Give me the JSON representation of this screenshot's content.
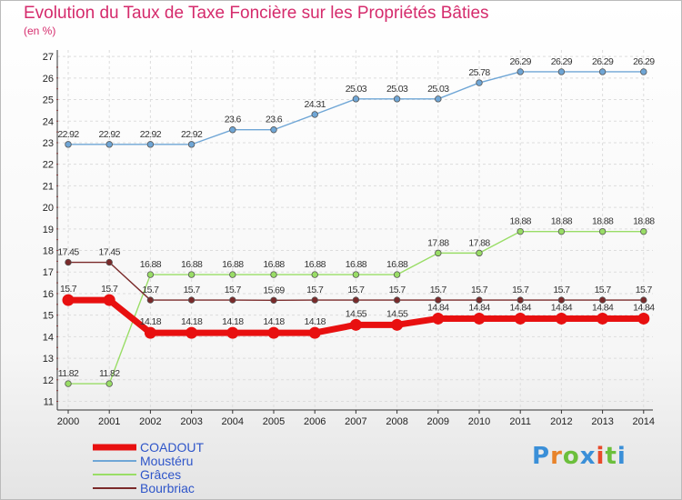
{
  "title": "Evolution du Taux de Taxe Foncière sur les Propriétés Bâties",
  "unit": "(en %)",
  "logo": "Proxiti",
  "chart_data": {
    "type": "line",
    "x": [
      2000,
      2001,
      2002,
      2003,
      2004,
      2005,
      2006,
      2007,
      2008,
      2009,
      2010,
      2011,
      2012,
      2013,
      2014
    ],
    "ylim": [
      10.6,
      27.3
    ],
    "yticks": [
      11,
      12,
      13,
      14,
      15,
      16,
      17,
      18,
      19,
      20,
      21,
      22,
      23,
      24,
      25,
      26,
      27
    ],
    "grid": true,
    "legend_position": "bottom-left",
    "series": [
      {
        "name": "COADOUT",
        "color": "#e81010",
        "style": "thick",
        "values": [
          15.7,
          15.7,
          14.18,
          14.18,
          14.18,
          14.18,
          14.18,
          14.55,
          14.55,
          14.84,
          14.84,
          14.84,
          14.84,
          14.84,
          14.84
        ],
        "labels": [
          "15.7",
          "15.7",
          "14.18",
          "14.18",
          "14.18",
          "14.18",
          "14.18",
          "14.55",
          "14.55",
          "14.84",
          "14.84",
          "14.84",
          "14.84",
          "14.84",
          "14.84"
        ]
      },
      {
        "name": "Moustéru",
        "color": "#6fa6d6",
        "style": "thin",
        "values": [
          22.92,
          22.92,
          22.92,
          22.92,
          23.6,
          23.6,
          24.31,
          25.03,
          25.03,
          25.03,
          25.78,
          26.29,
          26.29,
          26.29,
          26.29
        ],
        "labels": [
          "22.92",
          "22.92",
          "22.92",
          "22.92",
          "23.6",
          "23.6",
          "24.31",
          "25.03",
          "25.03",
          "25.03",
          "25.78",
          "26.29",
          "26.29",
          "26.29",
          "26.29"
        ]
      },
      {
        "name": "Grâces",
        "color": "#99dd66",
        "style": "thin",
        "values": [
          11.82,
          11.82,
          16.88,
          16.88,
          16.88,
          16.88,
          16.88,
          16.88,
          16.88,
          17.88,
          17.88,
          18.88,
          18.88,
          18.88,
          18.88
        ],
        "labels": [
          "11.82",
          "11.82",
          "16.88",
          "16.88",
          "16.88",
          "16.88",
          "16.88",
          "16.88",
          "16.88",
          "17.88",
          "17.88",
          "18.88",
          "18.88",
          "18.88",
          "18.88"
        ]
      },
      {
        "name": "Bourbriac",
        "color": "#7a2a2a",
        "style": "thin",
        "values": [
          17.45,
          17.45,
          15.7,
          15.7,
          15.7,
          15.69,
          15.7,
          15.7,
          15.7,
          15.7,
          15.7,
          15.7,
          15.7,
          15.7,
          15.7
        ],
        "labels": [
          "17.45",
          "17.45",
          "15.7",
          "15.7",
          "15.7",
          "15.69",
          "15.7",
          "15.7",
          "15.7",
          "15.7",
          "15.7",
          "15.7",
          "15.7",
          "15.7",
          "15.7"
        ]
      }
    ]
  }
}
